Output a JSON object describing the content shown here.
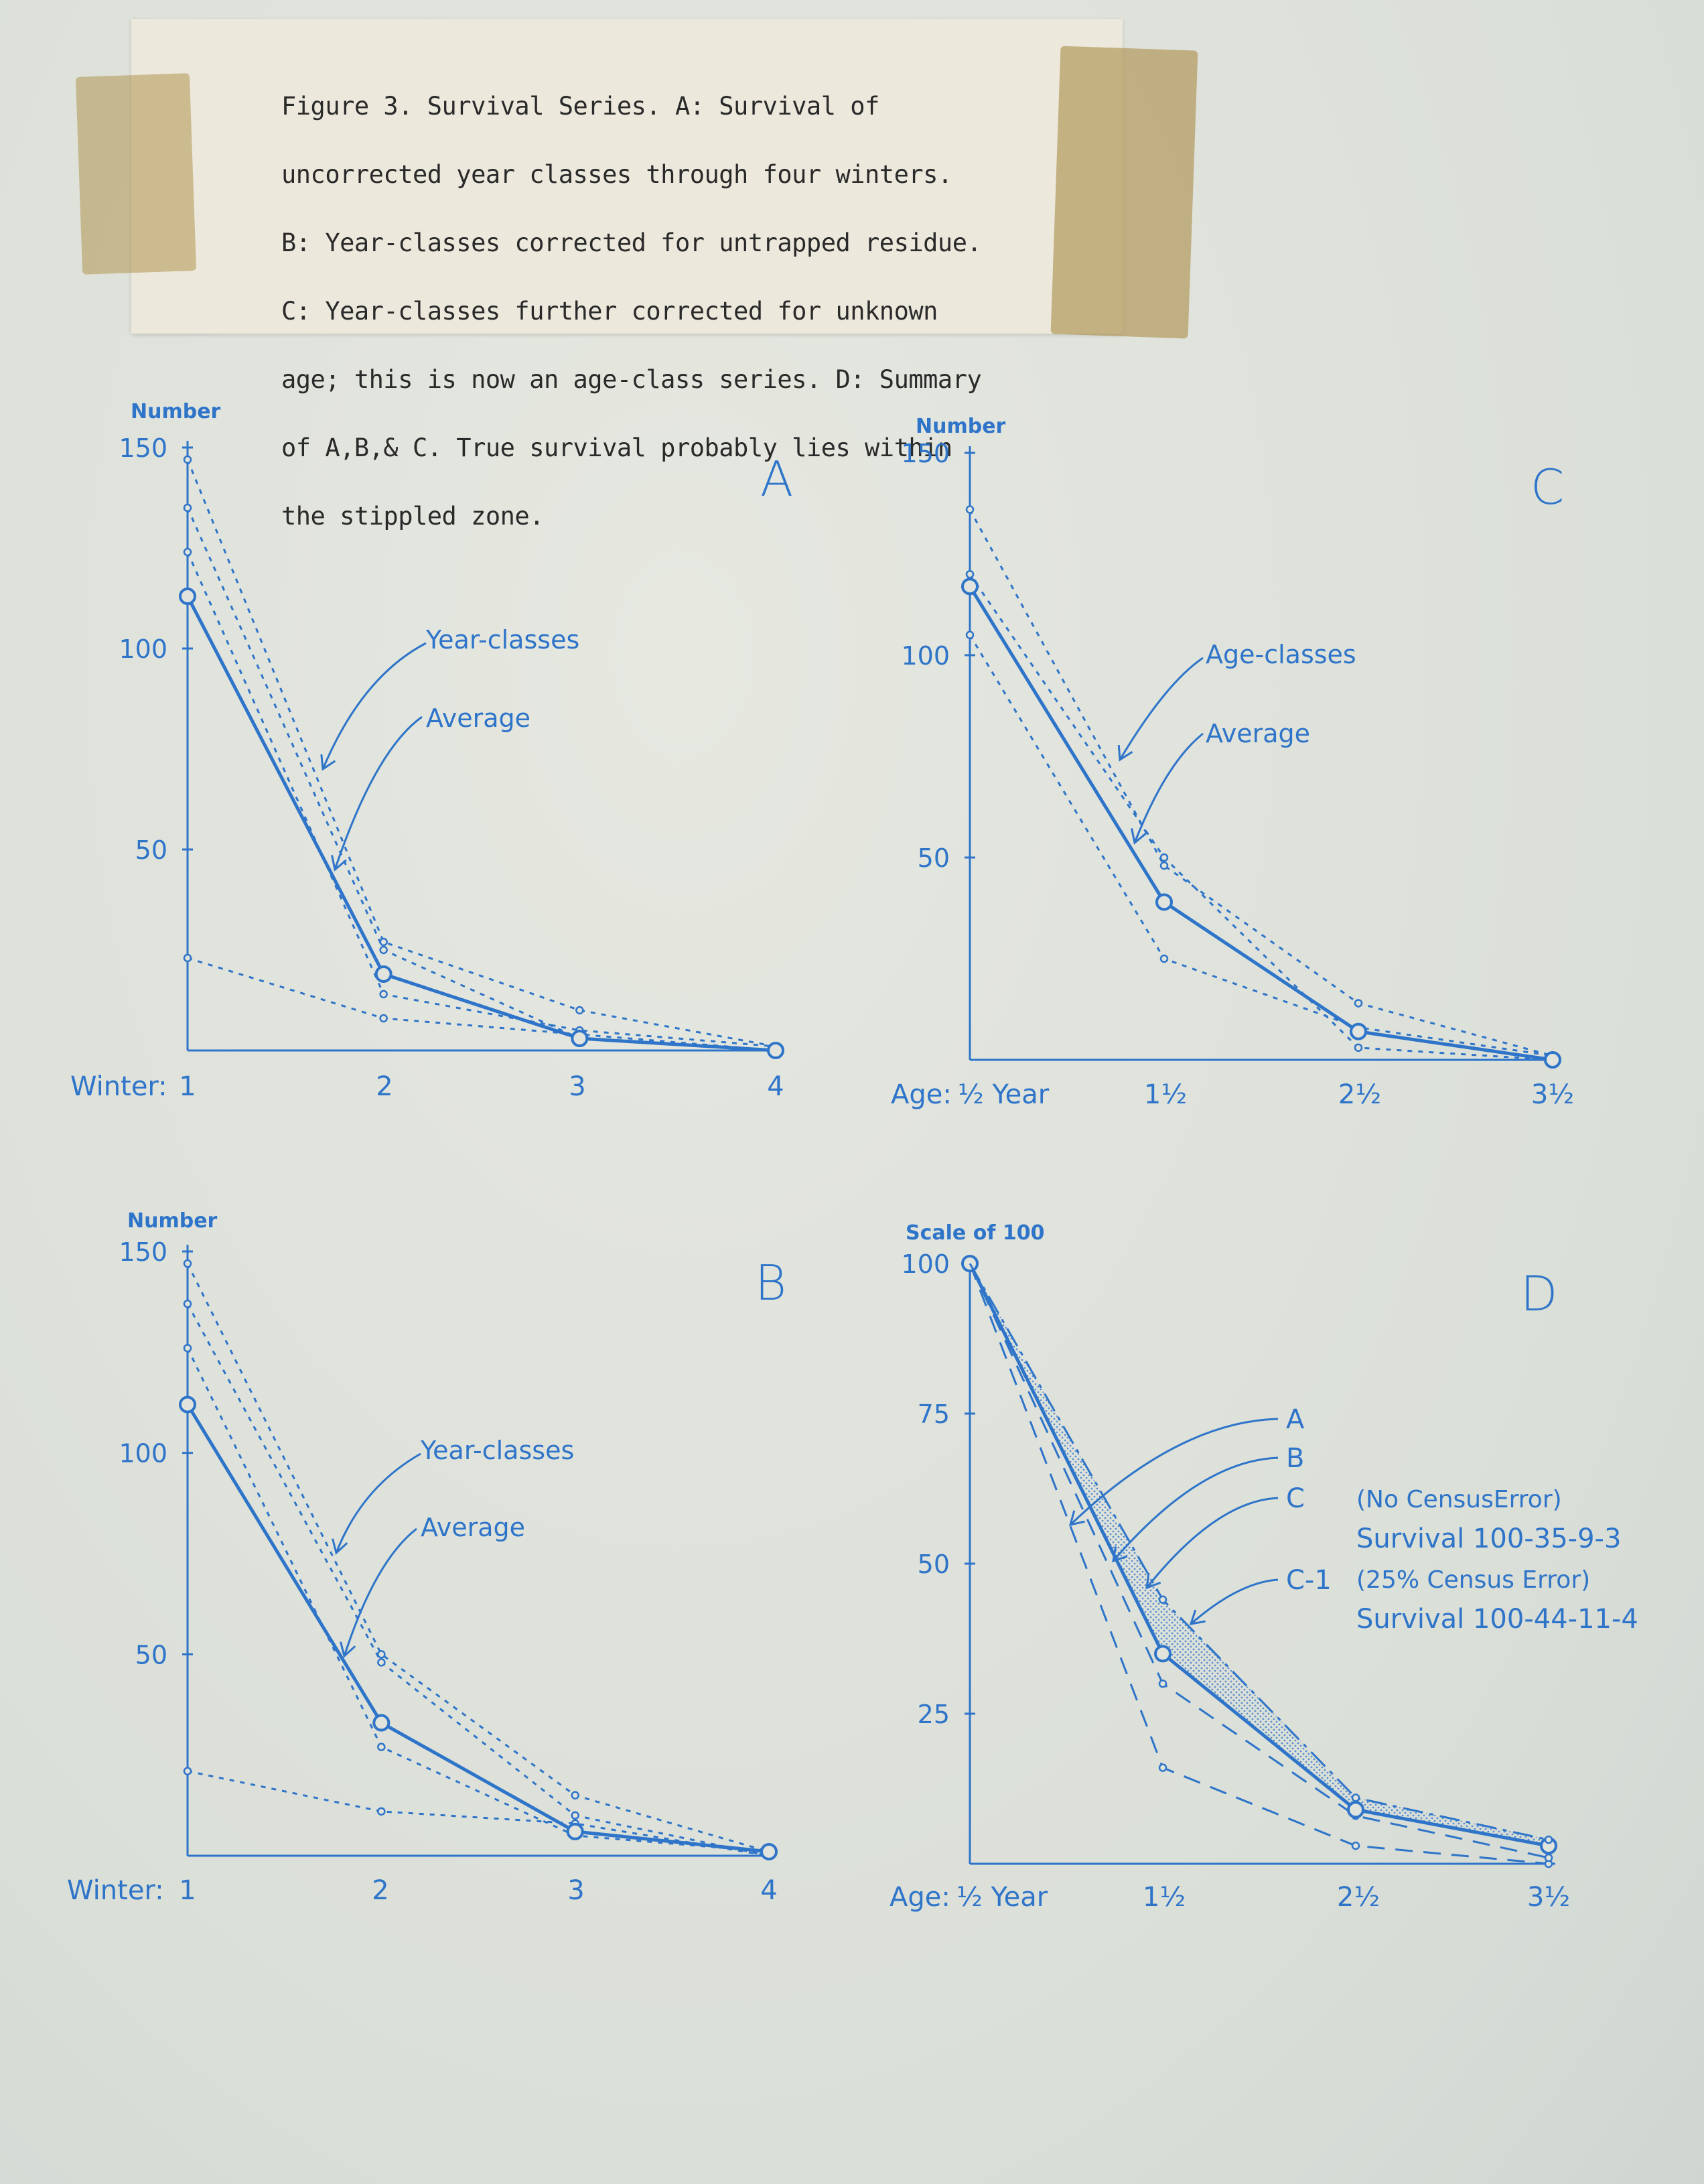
{
  "caption": {
    "lines": [
      "Figure 3.  Survival Series.  A: Survival of",
      "uncorrected year classes through four winters.",
      "B: Year-classes corrected for untrapped residue.",
      "C: Year-classes further corrected for unknown",
      "age; this is now an age-class series.  D: Summary",
      "of A,B,& C.  True survival probably lies within",
      "the stippled zone."
    ]
  },
  "colors": {
    "ink": "#2e74c9",
    "paper": "#e1e4dd",
    "caption_ink": "#2a2a2a",
    "tape": "#b4965a"
  },
  "chart_data": [
    {
      "panel": "A",
      "type": "line",
      "ylabel": "Number",
      "x_prefix": "Winter:",
      "categories": [
        "1",
        "2",
        "3",
        "4"
      ],
      "ylim": [
        0,
        150
      ],
      "yticks": [
        50,
        100,
        150
      ],
      "series": [
        {
          "name": "Year-classes",
          "style": "dotted",
          "values": [
            147,
            27,
            10,
            1
          ]
        },
        {
          "name": "Year-classes",
          "style": "dotted",
          "values": [
            135,
            25,
            3,
            0
          ]
        },
        {
          "name": "Year-classes",
          "style": "dotted",
          "values": [
            124,
            14,
            5,
            1
          ]
        },
        {
          "name": "Year-classes",
          "style": "dotted",
          "values": [
            23,
            8,
            4,
            0
          ]
        },
        {
          "name": "Average",
          "style": "solid",
          "values": [
            113,
            19,
            3,
            0
          ]
        }
      ],
      "annotations": [
        "Year-classes",
        "Average"
      ]
    },
    {
      "panel": "B",
      "type": "line",
      "ylabel": "Number",
      "x_prefix": "Winter:",
      "categories": [
        "1",
        "2",
        "3",
        "4"
      ],
      "ylim": [
        0,
        150
      ],
      "yticks": [
        50,
        100,
        150
      ],
      "series": [
        {
          "name": "Year-classes",
          "style": "dotted",
          "values": [
            147,
            50,
            15,
            1
          ]
        },
        {
          "name": "Year-classes",
          "style": "dotted",
          "values": [
            137,
            48,
            10,
            0
          ]
        },
        {
          "name": "Year-classes",
          "style": "dotted",
          "values": [
            126,
            27,
            5,
            1
          ]
        },
        {
          "name": "Year-classes",
          "style": "dotted",
          "values": [
            21,
            11,
            8,
            0
          ]
        },
        {
          "name": "Average",
          "style": "solid",
          "values": [
            112,
            33,
            6,
            1
          ]
        }
      ],
      "annotations": [
        "Year-classes",
        "Average"
      ]
    },
    {
      "panel": "C",
      "type": "line",
      "ylabel": "Number",
      "x_prefix": "Age:",
      "categories": [
        "½ Year",
        "1½",
        "2½",
        "3½"
      ],
      "ylim": [
        0,
        150
      ],
      "yticks": [
        50,
        100,
        150
      ],
      "series": [
        {
          "name": "Age-classes",
          "style": "dotted",
          "values": [
            136,
            48,
            14,
            1
          ]
        },
        {
          "name": "Age-classes",
          "style": "dotted",
          "values": [
            120,
            50,
            3,
            0
          ]
        },
        {
          "name": "Age-classes",
          "style": "dotted",
          "values": [
            105,
            25,
            8,
            1
          ]
        },
        {
          "name": "Average",
          "style": "solid",
          "values": [
            117,
            39,
            7,
            0
          ]
        }
      ],
      "annotations": [
        "Age-classes",
        "Average"
      ]
    },
    {
      "panel": "D",
      "type": "line",
      "ylabel": "Scale of 100",
      "x_prefix": "Age:",
      "categories": [
        "½ Year",
        "1½",
        "2½",
        "3½"
      ],
      "ylim": [
        0,
        100
      ],
      "yticks": [
        25,
        50,
        75,
        100
      ],
      "series": [
        {
          "name": "A",
          "style": "dashed",
          "values": [
            100,
            16,
            3,
            0
          ]
        },
        {
          "name": "B",
          "style": "dashed",
          "values": [
            100,
            30,
            8,
            1
          ]
        },
        {
          "name": "C",
          "style": "solid",
          "values": [
            100,
            35,
            9,
            3
          ]
        },
        {
          "name": "C-1",
          "style": "dash-dot",
          "values": [
            100,
            44,
            11,
            4
          ]
        }
      ],
      "stippled_zone": {
        "between": [
          "C",
          "C-1"
        ]
      },
      "labels": [
        "A",
        "B",
        "C",
        "C-1"
      ],
      "notes": [
        "(No CensusError)",
        "Survival 100-35-9-3",
        "(25% Census Error)",
        "Survival 100-44-11-4"
      ]
    }
  ]
}
